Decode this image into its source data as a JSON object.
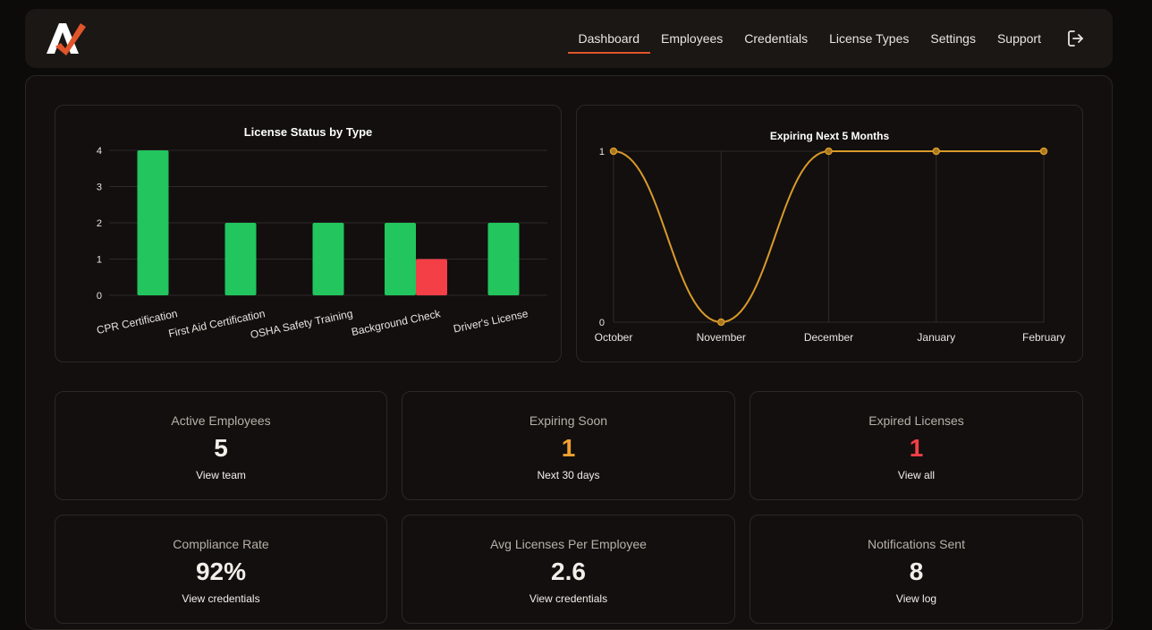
{
  "nav": {
    "items": [
      "Dashboard",
      "Employees",
      "Credentials",
      "License Types",
      "Settings",
      "Support"
    ],
    "active": "Dashboard"
  },
  "colors": {
    "accent": "#e0552a",
    "green": "#22c55e",
    "red": "#f43f46",
    "orange": "#e8a028",
    "line": "#d89a2a"
  },
  "chart_data": [
    {
      "type": "bar",
      "title": "License Status by Type",
      "categories": [
        "CPR Certification",
        "First Aid Certification",
        "OSHA Safety Training",
        "Background Check",
        "Driver's License"
      ],
      "series": [
        {
          "values": [
            4,
            2,
            2,
            2,
            2
          ],
          "color": "#22c55e"
        },
        {
          "values": [
            0,
            0,
            0,
            1,
            0
          ],
          "color": "#f43f46"
        }
      ],
      "ylim": [
        0,
        4
      ],
      "yticks": [
        0,
        1,
        2,
        3,
        4
      ],
      "grid": true
    },
    {
      "type": "line",
      "title": "Expiring Next 5 Months",
      "categories": [
        "October",
        "November",
        "December",
        "January",
        "February"
      ],
      "values": [
        1,
        0,
        1,
        1,
        1
      ],
      "ylim": [
        0,
        1
      ],
      "yticks": [
        0,
        1
      ],
      "grid": true
    }
  ],
  "stats": [
    {
      "label": "Active Employees",
      "value": "5",
      "link": "View team",
      "color": "#f2eeea"
    },
    {
      "label": "Expiring Soon",
      "value": "1",
      "link": "Next 30 days",
      "color": "#f0a030"
    },
    {
      "label": "Expired Licenses",
      "value": "1",
      "link": "View all",
      "color": "#f43f46"
    },
    {
      "label": "Compliance Rate",
      "value": "92%",
      "link": "View credentials",
      "color": "#f2eeea"
    },
    {
      "label": "Avg Licenses Per Employee",
      "value": "2.6",
      "link": "View credentials",
      "color": "#f2eeea"
    },
    {
      "label": "Notifications Sent",
      "value": "8",
      "link": "View log",
      "color": "#f2eeea"
    }
  ]
}
